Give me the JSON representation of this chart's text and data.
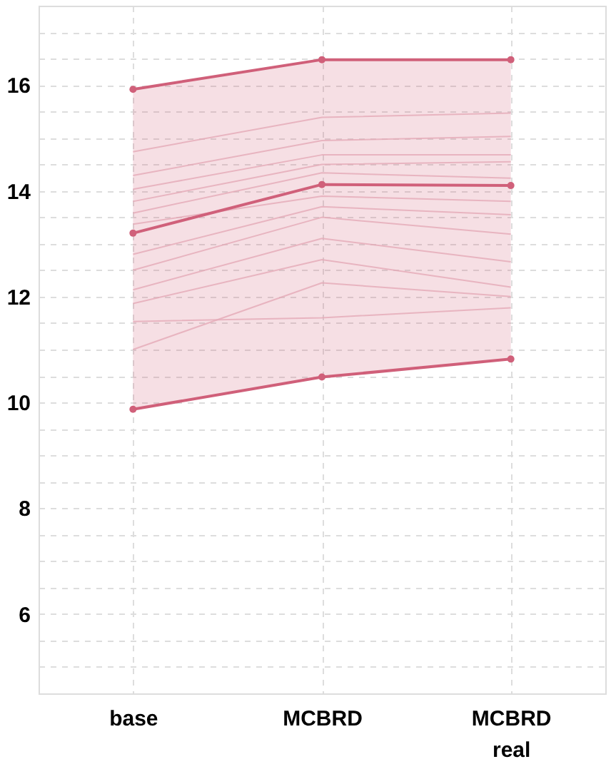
{
  "chart_data": {
    "type": "line",
    "categories": [
      "base",
      "MCBRD",
      "MCBRD real"
    ],
    "ylim": [
      4.5,
      17.5
    ],
    "yticks": [
      {
        "value": 5,
        "label": null
      },
      {
        "value": 5.5,
        "label": null
      },
      6,
      {
        "value": 6.5,
        "label": null
      },
      {
        "value": 7,
        "label": null
      },
      {
        "value": 7.5,
        "label": null
      },
      8,
      {
        "value": 8.5,
        "label": null
      },
      {
        "value": 9,
        "label": null
      },
      {
        "value": 9.5,
        "label": null
      },
      10,
      {
        "value": 10.5,
        "label": null
      },
      {
        "value": 11,
        "label": null
      },
      {
        "value": 11.5,
        "label": null
      },
      12,
      {
        "value": 12.5,
        "label": null
      },
      {
        "value": 13,
        "label": null
      },
      {
        "value": 13.5,
        "label": null
      },
      14,
      {
        "value": 14.5,
        "label": null
      },
      {
        "value": 15,
        "label": null
      },
      {
        "value": 15.5,
        "label": null
      },
      16,
      {
        "value": 16.5,
        "label": null
      },
      {
        "value": 17,
        "label": null
      }
    ],
    "grid": true,
    "line_style": "solid",
    "series": [
      {
        "color": "#eabdc7",
        "marker": "none",
        "values": [
          14.74,
          15.39,
          15.47
        ]
      },
      {
        "color": "#eabdc7",
        "marker": "none",
        "values": [
          14.29,
          14.95,
          15.03
        ]
      },
      {
        "color": "#eabdc7",
        "marker": "none",
        "values": [
          14.03,
          14.68,
          14.68
        ]
      },
      {
        "color": "#eabdc7",
        "marker": "none",
        "values": [
          13.8,
          14.5,
          14.55
        ]
      },
      {
        "color": "#eabdc7",
        "marker": "none",
        "values": [
          13.58,
          14.34,
          14.24
        ]
      },
      {
        "color": "#eabdc7",
        "marker": "none",
        "values": [
          13.37,
          13.9,
          13.8
        ]
      },
      {
        "color": "#eabdc7",
        "marker": "none",
        "values": [
          12.8,
          13.7,
          13.55
        ]
      },
      {
        "color": "#eabdc7",
        "marker": "none",
        "values": [
          12.5,
          13.5,
          13.18
        ]
      },
      {
        "color": "#eabdc7",
        "marker": "none",
        "values": [
          12.13,
          13.1,
          12.66
        ]
      },
      {
        "color": "#eabdc7",
        "marker": "none",
        "values": [
          11.87,
          12.7,
          12.18
        ]
      },
      {
        "color": "#eabdc7",
        "marker": "none",
        "values": [
          11.53,
          11.6,
          11.79
        ]
      },
      {
        "color": "#eabdc7",
        "marker": "none",
        "values": [
          11.0,
          12.26,
          12.0
        ]
      },
      {
        "color": "#d0607a",
        "marker": "circle",
        "values": [
          15.92,
          16.48,
          16.48
        ]
      },
      {
        "color": "#d0607a",
        "marker": "circle",
        "values": [
          9.87,
          10.48,
          10.82
        ]
      },
      {
        "color": "#d0607a",
        "marker": "circle",
        "values": [
          13.2,
          14.12,
          14.1
        ],
        "lower": [
          9.87,
          10.48,
          10.82
        ],
        "upper": [
          15.92,
          16.48,
          16.48
        ]
      }
    ]
  }
}
